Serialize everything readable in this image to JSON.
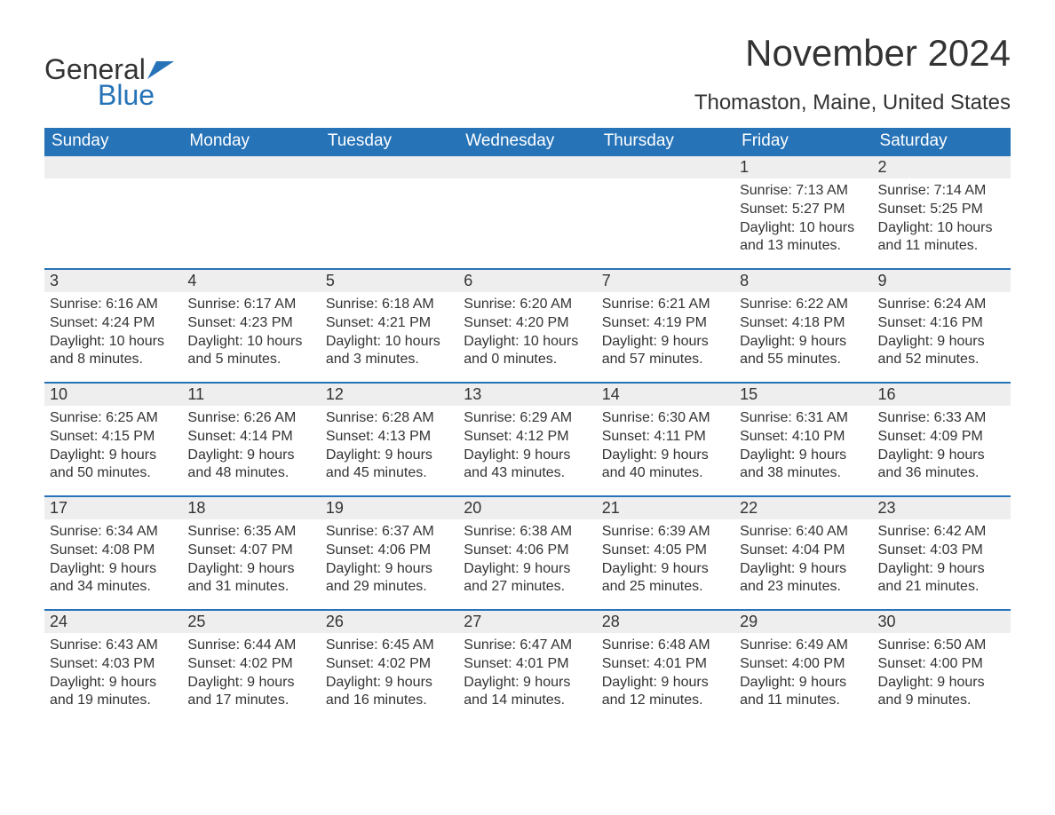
{
  "logo": {
    "text1": "General",
    "text2": "Blue"
  },
  "title": "November 2024",
  "location": "Thomaston, Maine, United States",
  "colors": {
    "header_bg": "#2673b8",
    "header_text": "#ffffff",
    "daynum_bg": "#eeeeee",
    "text": "#333333",
    "accent": "#2673b8",
    "page_bg": "#ffffff"
  },
  "day_headers": [
    "Sunday",
    "Monday",
    "Tuesday",
    "Wednesday",
    "Thursday",
    "Friday",
    "Saturday"
  ],
  "weeks": [
    [
      {
        "empty": true
      },
      {
        "empty": true
      },
      {
        "empty": true
      },
      {
        "empty": true
      },
      {
        "empty": true
      },
      {
        "num": "1",
        "sunrise": "Sunrise: 7:13 AM",
        "sunset": "Sunset: 5:27 PM",
        "daylight1": "Daylight: 10 hours",
        "daylight2": "and 13 minutes."
      },
      {
        "num": "2",
        "sunrise": "Sunrise: 7:14 AM",
        "sunset": "Sunset: 5:25 PM",
        "daylight1": "Daylight: 10 hours",
        "daylight2": "and 11 minutes."
      }
    ],
    [
      {
        "num": "3",
        "sunrise": "Sunrise: 6:16 AM",
        "sunset": "Sunset: 4:24 PM",
        "daylight1": "Daylight: 10 hours",
        "daylight2": "and 8 minutes."
      },
      {
        "num": "4",
        "sunrise": "Sunrise: 6:17 AM",
        "sunset": "Sunset: 4:23 PM",
        "daylight1": "Daylight: 10 hours",
        "daylight2": "and 5 minutes."
      },
      {
        "num": "5",
        "sunrise": "Sunrise: 6:18 AM",
        "sunset": "Sunset: 4:21 PM",
        "daylight1": "Daylight: 10 hours",
        "daylight2": "and 3 minutes."
      },
      {
        "num": "6",
        "sunrise": "Sunrise: 6:20 AM",
        "sunset": "Sunset: 4:20 PM",
        "daylight1": "Daylight: 10 hours",
        "daylight2": "and 0 minutes."
      },
      {
        "num": "7",
        "sunrise": "Sunrise: 6:21 AM",
        "sunset": "Sunset: 4:19 PM",
        "daylight1": "Daylight: 9 hours",
        "daylight2": "and 57 minutes."
      },
      {
        "num": "8",
        "sunrise": "Sunrise: 6:22 AM",
        "sunset": "Sunset: 4:18 PM",
        "daylight1": "Daylight: 9 hours",
        "daylight2": "and 55 minutes."
      },
      {
        "num": "9",
        "sunrise": "Sunrise: 6:24 AM",
        "sunset": "Sunset: 4:16 PM",
        "daylight1": "Daylight: 9 hours",
        "daylight2": "and 52 minutes."
      }
    ],
    [
      {
        "num": "10",
        "sunrise": "Sunrise: 6:25 AM",
        "sunset": "Sunset: 4:15 PM",
        "daylight1": "Daylight: 9 hours",
        "daylight2": "and 50 minutes."
      },
      {
        "num": "11",
        "sunrise": "Sunrise: 6:26 AM",
        "sunset": "Sunset: 4:14 PM",
        "daylight1": "Daylight: 9 hours",
        "daylight2": "and 48 minutes."
      },
      {
        "num": "12",
        "sunrise": "Sunrise: 6:28 AM",
        "sunset": "Sunset: 4:13 PM",
        "daylight1": "Daylight: 9 hours",
        "daylight2": "and 45 minutes."
      },
      {
        "num": "13",
        "sunrise": "Sunrise: 6:29 AM",
        "sunset": "Sunset: 4:12 PM",
        "daylight1": "Daylight: 9 hours",
        "daylight2": "and 43 minutes."
      },
      {
        "num": "14",
        "sunrise": "Sunrise: 6:30 AM",
        "sunset": "Sunset: 4:11 PM",
        "daylight1": "Daylight: 9 hours",
        "daylight2": "and 40 minutes."
      },
      {
        "num": "15",
        "sunrise": "Sunrise: 6:31 AM",
        "sunset": "Sunset: 4:10 PM",
        "daylight1": "Daylight: 9 hours",
        "daylight2": "and 38 minutes."
      },
      {
        "num": "16",
        "sunrise": "Sunrise: 6:33 AM",
        "sunset": "Sunset: 4:09 PM",
        "daylight1": "Daylight: 9 hours",
        "daylight2": "and 36 minutes."
      }
    ],
    [
      {
        "num": "17",
        "sunrise": "Sunrise: 6:34 AM",
        "sunset": "Sunset: 4:08 PM",
        "daylight1": "Daylight: 9 hours",
        "daylight2": "and 34 minutes."
      },
      {
        "num": "18",
        "sunrise": "Sunrise: 6:35 AM",
        "sunset": "Sunset: 4:07 PM",
        "daylight1": "Daylight: 9 hours",
        "daylight2": "and 31 minutes."
      },
      {
        "num": "19",
        "sunrise": "Sunrise: 6:37 AM",
        "sunset": "Sunset: 4:06 PM",
        "daylight1": "Daylight: 9 hours",
        "daylight2": "and 29 minutes."
      },
      {
        "num": "20",
        "sunrise": "Sunrise: 6:38 AM",
        "sunset": "Sunset: 4:06 PM",
        "daylight1": "Daylight: 9 hours",
        "daylight2": "and 27 minutes."
      },
      {
        "num": "21",
        "sunrise": "Sunrise: 6:39 AM",
        "sunset": "Sunset: 4:05 PM",
        "daylight1": "Daylight: 9 hours",
        "daylight2": "and 25 minutes."
      },
      {
        "num": "22",
        "sunrise": "Sunrise: 6:40 AM",
        "sunset": "Sunset: 4:04 PM",
        "daylight1": "Daylight: 9 hours",
        "daylight2": "and 23 minutes."
      },
      {
        "num": "23",
        "sunrise": "Sunrise: 6:42 AM",
        "sunset": "Sunset: 4:03 PM",
        "daylight1": "Daylight: 9 hours",
        "daylight2": "and 21 minutes."
      }
    ],
    [
      {
        "num": "24",
        "sunrise": "Sunrise: 6:43 AM",
        "sunset": "Sunset: 4:03 PM",
        "daylight1": "Daylight: 9 hours",
        "daylight2": "and 19 minutes."
      },
      {
        "num": "25",
        "sunrise": "Sunrise: 6:44 AM",
        "sunset": "Sunset: 4:02 PM",
        "daylight1": "Daylight: 9 hours",
        "daylight2": "and 17 minutes."
      },
      {
        "num": "26",
        "sunrise": "Sunrise: 6:45 AM",
        "sunset": "Sunset: 4:02 PM",
        "daylight1": "Daylight: 9 hours",
        "daylight2": "and 16 minutes."
      },
      {
        "num": "27",
        "sunrise": "Sunrise: 6:47 AM",
        "sunset": "Sunset: 4:01 PM",
        "daylight1": "Daylight: 9 hours",
        "daylight2": "and 14 minutes."
      },
      {
        "num": "28",
        "sunrise": "Sunrise: 6:48 AM",
        "sunset": "Sunset: 4:01 PM",
        "daylight1": "Daylight: 9 hours",
        "daylight2": "and 12 minutes."
      },
      {
        "num": "29",
        "sunrise": "Sunrise: 6:49 AM",
        "sunset": "Sunset: 4:00 PM",
        "daylight1": "Daylight: 9 hours",
        "daylight2": "and 11 minutes."
      },
      {
        "num": "30",
        "sunrise": "Sunrise: 6:50 AM",
        "sunset": "Sunset: 4:00 PM",
        "daylight1": "Daylight: 9 hours",
        "daylight2": "and 9 minutes."
      }
    ]
  ]
}
